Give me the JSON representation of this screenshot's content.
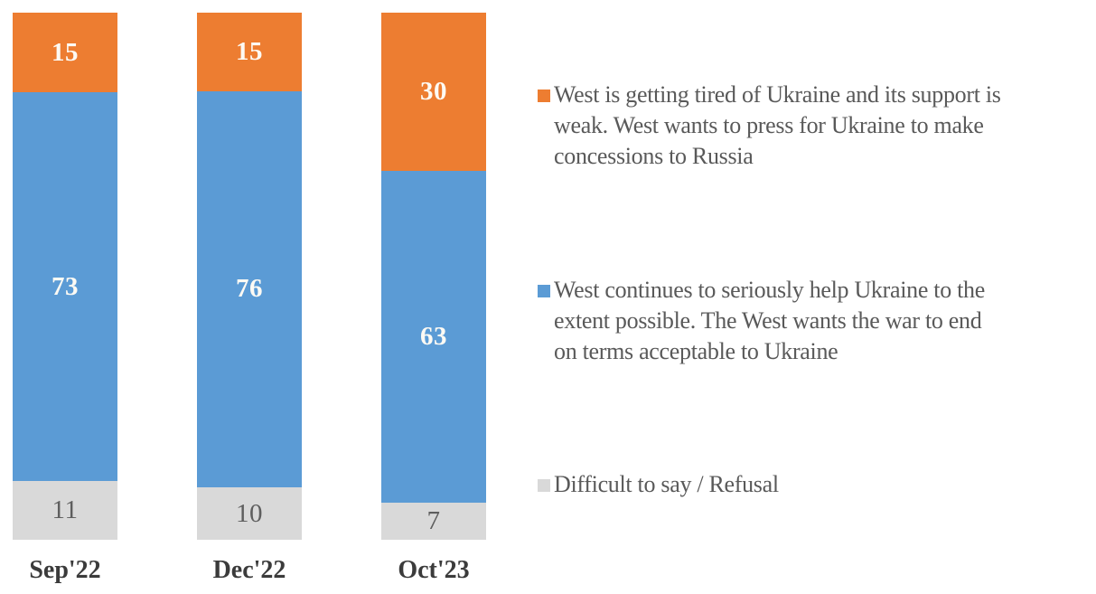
{
  "chart_data": {
    "type": "bar",
    "subtype": "stacked-column-100",
    "orientation": "vertical",
    "categories": [
      "Sep'22",
      "Dec'22",
      "Oct'23"
    ],
    "series": [
      {
        "name": "West is getting tired of Ukraine and its support is weak. West wants to press for Ukraine to make concessions to Russia",
        "color": "#ED7D31",
        "values": [
          15,
          15,
          30
        ]
      },
      {
        "name": "West continues to seriously help Ukraine to the extent possible. The West wants the war to end on terms acceptable to Ukraine",
        "color": "#5B9BD5",
        "values": [
          73,
          76,
          63
        ]
      },
      {
        "name": "Difficult to say / Refusal",
        "color": "#D9D9D9",
        "values": [
          11,
          10,
          7
        ]
      }
    ],
    "title": "",
    "xlabel": "",
    "ylabel": "",
    "axes_visible": false,
    "grid": false,
    "data_labels": "inside-center",
    "legend_position": "right"
  },
  "legend": {
    "items": [
      {
        "text": "West is getting tired of Ukraine and its support is\nweak. West wants to press for Ukraine to make\nconcessions to Russia",
        "color": "#ED7D31"
      },
      {
        "text": "West continues to seriously help Ukraine to the\nextent possible. The West wants the war to end\non terms acceptable to Ukraine",
        "color": "#5B9BD5"
      },
      {
        "text": "Difficult to say / Refusal",
        "color": "#D9D9D9"
      }
    ]
  },
  "label_colors": {
    "on_color_segments": "#FDFAF4",
    "on_gray_segment": "#5E5E5E",
    "category": "#3B3B3B",
    "legend_text": "#595959"
  }
}
